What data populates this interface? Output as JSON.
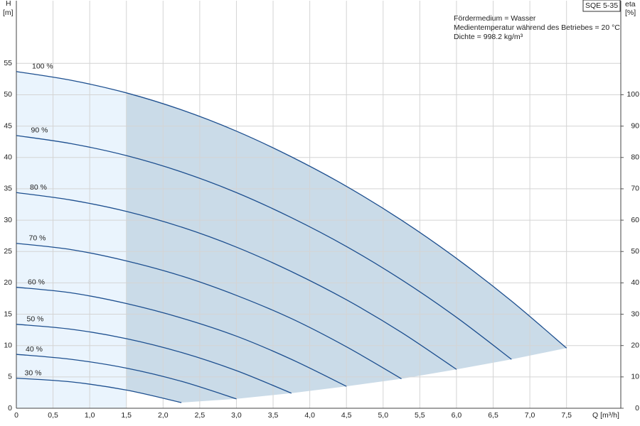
{
  "chart_data": {
    "type": "line",
    "model": "SQE 5-35",
    "notes": [
      "Fördermedium = Wasser",
      "Medientemperatur während des Betriebes = 20 °C",
      "Dichte = 998.2 kg/m³"
    ],
    "y_label": [
      "H",
      "[m]"
    ],
    "y2_label": [
      "eta",
      "[%]"
    ],
    "x_label": "Q [m³/h]",
    "xlim": [
      0,
      8.24
    ],
    "ylim": [
      0,
      65
    ],
    "y2lim": [
      0,
      130
    ],
    "xticks": [
      0,
      {
        "value": 0.5,
        "label": "0,5"
      },
      {
        "value": 1,
        "label": "1,0"
      },
      {
        "value": 1.5,
        "label": "1,5"
      },
      {
        "value": 2,
        "label": "2,0"
      },
      {
        "value": 2.5,
        "label": "2,5"
      },
      {
        "value": 3,
        "label": "3,0"
      },
      {
        "value": 3.5,
        "label": "3,5"
      },
      {
        "value": 4,
        "label": "4,0"
      },
      {
        "value": 4.5,
        "label": "4,5"
      },
      {
        "value": 5,
        "label": "5,0"
      },
      {
        "value": 5.5,
        "label": "5,5"
      },
      {
        "value": 6,
        "label": "6,0"
      },
      {
        "value": 6.5,
        "label": "6,5"
      },
      {
        "value": 7,
        "label": "7,0"
      },
      {
        "value": 7.5,
        "label": "7,5"
      }
    ],
    "yticks": [
      0,
      5,
      10,
      15,
      20,
      25,
      30,
      35,
      40,
      45,
      50,
      55
    ],
    "y2ticks": [
      0,
      10,
      20,
      30,
      40,
      50,
      60,
      70,
      80,
      90,
      100
    ],
    "grid": true,
    "shaded_from_x": 1.5,
    "series": [
      {
        "name": "100 %",
        "color": "#1d4f8f",
        "x": [
          0,
          0.75,
          1.5,
          2.25,
          3,
          3.75,
          4.5,
          5.25,
          6,
          6.75,
          7.5
        ],
        "values": [
          53.7,
          52.3,
          50.3,
          47.6,
          44.2,
          40.1,
          35.4,
          30.0,
          23.9,
          17.1,
          9.6
        ]
      },
      {
        "name": "90 %",
        "color": "#1d4f8f",
        "x": [
          0,
          0.75,
          1.5,
          2.25,
          3,
          3.75,
          4.5,
          5.25,
          6,
          6.75
        ],
        "values": [
          43.5,
          42.2,
          40.3,
          37.7,
          34.4,
          30.4,
          25.8,
          20.5,
          14.5,
          7.8
        ]
      },
      {
        "name": "80 %",
        "color": "#1d4f8f",
        "x": [
          0,
          0.75,
          1.5,
          2.25,
          3,
          3.75,
          4.5,
          5.25,
          6
        ],
        "values": [
          34.4,
          33.2,
          31.4,
          28.9,
          25.7,
          21.8,
          17.3,
          12.1,
          6.2
        ]
      },
      {
        "name": "70 %",
        "color": "#1d4f8f",
        "x": [
          0,
          0.75,
          1.5,
          2.25,
          3,
          3.75,
          4.5,
          5.25
        ],
        "values": [
          26.3,
          25.3,
          23.5,
          21.1,
          18.0,
          14.3,
          9.8,
          4.7
        ]
      },
      {
        "name": "60 %",
        "color": "#1d4f8f",
        "x": [
          0,
          0.75,
          1.5,
          2.25,
          3,
          3.75,
          4.5
        ],
        "values": [
          19.3,
          18.4,
          16.7,
          14.4,
          11.5,
          7.8,
          3.5
        ]
      },
      {
        "name": "50 %",
        "color": "#1d4f8f",
        "x": [
          0,
          0.75,
          1.5,
          2.25,
          3,
          3.75
        ],
        "values": [
          13.4,
          12.6,
          11.1,
          8.9,
          6.0,
          2.4
        ]
      },
      {
        "name": "40 %",
        "color": "#1d4f8f",
        "x": [
          0,
          0.75,
          1.5,
          2.25,
          3
        ],
        "values": [
          8.6,
          7.8,
          6.4,
          4.3,
          1.5
        ]
      },
      {
        "name": "30 %",
        "color": "#1d4f8f",
        "x": [
          0,
          0.75,
          1.5,
          2.25
        ],
        "values": [
          4.8,
          4.2,
          2.9,
          0.9
        ]
      }
    ]
  }
}
